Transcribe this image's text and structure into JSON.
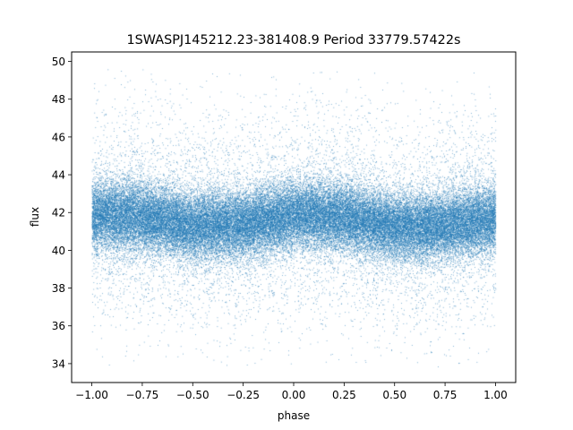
{
  "chart_data": {
    "type": "scatter",
    "title": "1SWASPJ145212.23-381408.9 Period 33779.57422s",
    "xlabel": "phase",
    "ylabel": "flux",
    "xlim": [
      -1.1,
      1.1
    ],
    "ylim": [
      33.0,
      50.5
    ],
    "xticks": [
      -1.0,
      -0.75,
      -0.5,
      -0.25,
      0.0,
      0.25,
      0.5,
      0.75,
      1.0
    ],
    "xtick_labels": [
      "−1.00",
      "−0.75",
      "−0.50",
      "−0.25",
      "0.00",
      "0.25",
      "0.50",
      "0.75",
      "1.00"
    ],
    "yticks": [
      34,
      36,
      38,
      40,
      42,
      44,
      46,
      48,
      50
    ],
    "ytick_labels": [
      "34",
      "36",
      "38",
      "40",
      "42",
      "44",
      "46",
      "48",
      "50"
    ],
    "grid": false,
    "legend": "none",
    "marker_color": "#1f77b4",
    "phase_range": [
      -1.0,
      1.0
    ],
    "flux_range": [
      33.8,
      49.6
    ],
    "point_count": 60000,
    "trend": {
      "phase": [
        -1.0,
        -0.75,
        -0.5,
        -0.25,
        0.0,
        0.25,
        0.5,
        0.75,
        1.0
      ],
      "flux": [
        41.9,
        41.8,
        41.3,
        41.4,
        41.9,
        41.8,
        41.2,
        41.3,
        41.7
      ]
    },
    "core_spread": 0.9,
    "tail_spread": 3.0
  }
}
